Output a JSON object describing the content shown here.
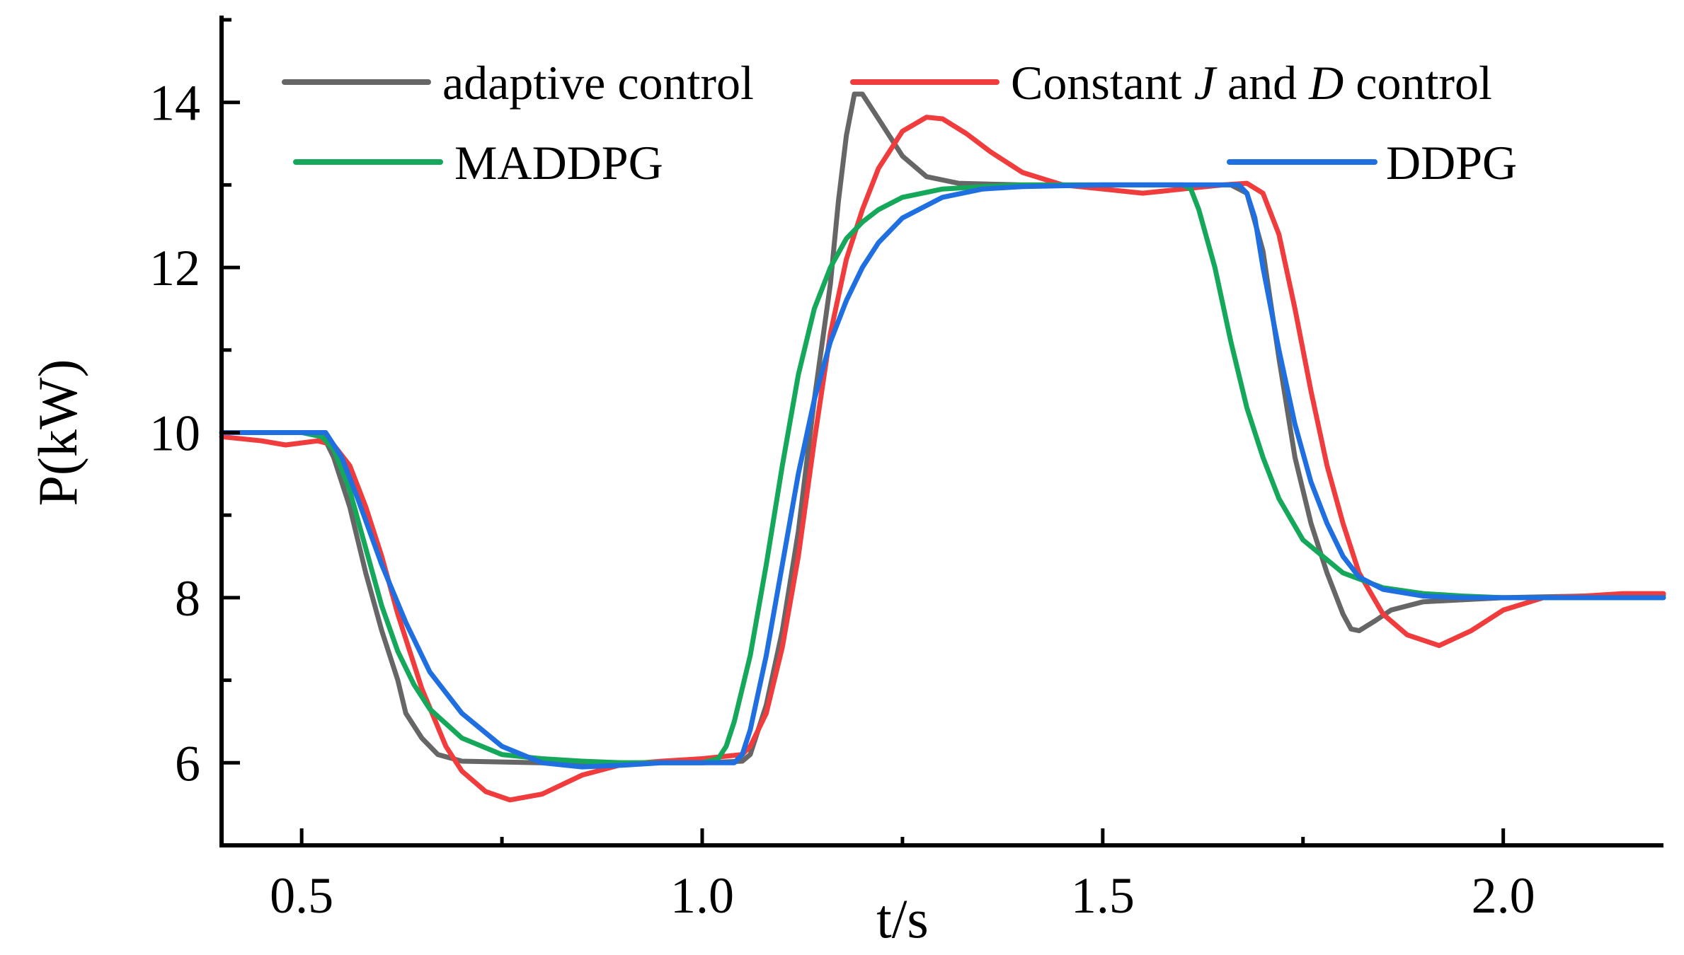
{
  "chart_data": {
    "type": "line",
    "title": "",
    "xlabel": "t/s",
    "ylabel": "P(kW)",
    "xlim": [
      0.4,
      2.2
    ],
    "ylim": [
      5,
      15
    ],
    "xticks": [
      0.5,
      1.0,
      1.5,
      2.0
    ],
    "xtick_labels": [
      "0.5",
      "1.0",
      "1.5",
      "2.0"
    ],
    "x_minor_ticks": [
      0.75,
      1.25,
      1.75
    ],
    "yticks": [
      6,
      8,
      10,
      12,
      14
    ],
    "ytick_labels": [
      "6",
      "8",
      "10",
      "12",
      "14"
    ],
    "y_minor_ticks": [
      5,
      7,
      9,
      11,
      13,
      15
    ],
    "grid": false,
    "legend": {
      "placement": "top",
      "entries": [
        {
          "name": "adaptive control",
          "color": "#666666",
          "row": 1
        },
        {
          "name_parts": [
            "Constant ",
            "J",
            " and ",
            "D",
            " control"
          ],
          "color": "#f03c3c",
          "row": 1
        },
        {
          "name": "MADDPG",
          "color": "#16a85a",
          "row": 2
        },
        {
          "name": "DDPG",
          "color": "#1f6fe0",
          "row": 2
        }
      ]
    },
    "series": [
      {
        "name": "adaptive control",
        "color": "#666666",
        "x": [
          0.4,
          0.45,
          0.5,
          0.525,
          0.54,
          0.56,
          0.58,
          0.6,
          0.62,
          0.63,
          0.65,
          0.67,
          0.7,
          0.8,
          0.9,
          1.0,
          1.05,
          1.06,
          1.08,
          1.1,
          1.12,
          1.14,
          1.16,
          1.17,
          1.18,
          1.19,
          1.2,
          1.22,
          1.25,
          1.28,
          1.32,
          1.4,
          1.5,
          1.6,
          1.66,
          1.68,
          1.7,
          1.72,
          1.74,
          1.76,
          1.78,
          1.8,
          1.81,
          1.82,
          1.84,
          1.86,
          1.9,
          2.0,
          2.1,
          2.2
        ],
        "y": [
          10.0,
          10.0,
          10.0,
          10.0,
          9.7,
          9.1,
          8.3,
          7.6,
          7.0,
          6.6,
          6.3,
          6.1,
          6.02,
          6.0,
          6.0,
          6.0,
          6.02,
          6.1,
          6.7,
          7.6,
          8.8,
          10.4,
          11.8,
          12.8,
          13.6,
          14.1,
          14.1,
          13.8,
          13.35,
          13.1,
          13.02,
          13.0,
          13.0,
          13.0,
          13.0,
          12.9,
          12.2,
          10.9,
          9.7,
          8.9,
          8.3,
          7.8,
          7.62,
          7.6,
          7.72,
          7.85,
          7.95,
          8.0,
          8.02,
          8.03
        ]
      },
      {
        "name": "Constant J and D control",
        "color": "#f03c3c",
        "x": [
          0.4,
          0.45,
          0.48,
          0.52,
          0.54,
          0.56,
          0.58,
          0.6,
          0.62,
          0.65,
          0.68,
          0.7,
          0.73,
          0.76,
          0.8,
          0.85,
          0.9,
          0.95,
          1.0,
          1.05,
          1.06,
          1.08,
          1.1,
          1.12,
          1.14,
          1.16,
          1.18,
          1.2,
          1.22,
          1.25,
          1.28,
          1.3,
          1.33,
          1.36,
          1.4,
          1.45,
          1.5,
          1.55,
          1.6,
          1.65,
          1.68,
          1.7,
          1.72,
          1.74,
          1.76,
          1.78,
          1.8,
          1.82,
          1.85,
          1.88,
          1.92,
          1.96,
          2.0,
          2.05,
          2.1,
          2.15,
          2.2
        ],
        "y": [
          9.95,
          9.9,
          9.85,
          9.9,
          9.85,
          9.6,
          9.1,
          8.5,
          7.8,
          6.9,
          6.2,
          5.9,
          5.65,
          5.55,
          5.62,
          5.85,
          5.98,
          6.02,
          6.05,
          6.1,
          6.2,
          6.6,
          7.4,
          8.5,
          9.9,
          11.2,
          12.1,
          12.7,
          13.2,
          13.65,
          13.82,
          13.8,
          13.62,
          13.4,
          13.15,
          13.0,
          12.95,
          12.9,
          12.95,
          13.0,
          13.02,
          12.9,
          12.4,
          11.5,
          10.5,
          9.6,
          8.9,
          8.3,
          7.8,
          7.55,
          7.42,
          7.6,
          7.85,
          8.0,
          8.02,
          8.05,
          8.05
        ]
      },
      {
        "name": "MADDPG",
        "color": "#16a85a",
        "x": [
          0.4,
          0.45,
          0.5,
          0.525,
          0.54,
          0.56,
          0.58,
          0.6,
          0.62,
          0.64,
          0.66,
          0.7,
          0.75,
          0.8,
          0.85,
          0.9,
          0.95,
          1.0,
          1.02,
          1.03,
          1.04,
          1.06,
          1.08,
          1.1,
          1.12,
          1.14,
          1.16,
          1.18,
          1.2,
          1.22,
          1.25,
          1.3,
          1.35,
          1.4,
          1.5,
          1.55,
          1.6,
          1.61,
          1.62,
          1.64,
          1.66,
          1.68,
          1.7,
          1.72,
          1.75,
          1.8,
          1.85,
          1.9,
          1.95,
          2.0,
          2.1,
          2.2
        ],
        "y": [
          10.0,
          10.0,
          10.0,
          9.95,
          9.8,
          9.3,
          8.6,
          7.9,
          7.35,
          6.95,
          6.65,
          6.3,
          6.1,
          6.05,
          6.02,
          6.0,
          6.0,
          6.0,
          6.05,
          6.2,
          6.5,
          7.3,
          8.4,
          9.6,
          10.7,
          11.5,
          12.0,
          12.35,
          12.55,
          12.7,
          12.85,
          12.95,
          12.98,
          13.0,
          13.0,
          13.0,
          13.0,
          12.95,
          12.7,
          12.0,
          11.1,
          10.3,
          9.7,
          9.2,
          8.7,
          8.3,
          8.12,
          8.05,
          8.02,
          8.0,
          8.0,
          8.0
        ]
      },
      {
        "name": "DDPG",
        "color": "#1f6fe0",
        "x": [
          0.4,
          0.45,
          0.5,
          0.53,
          0.55,
          0.57,
          0.6,
          0.63,
          0.66,
          0.7,
          0.75,
          0.8,
          0.85,
          0.9,
          0.95,
          1.0,
          1.04,
          1.05,
          1.06,
          1.08,
          1.1,
          1.12,
          1.14,
          1.16,
          1.18,
          1.2,
          1.22,
          1.25,
          1.3,
          1.35,
          1.4,
          1.5,
          1.6,
          1.67,
          1.68,
          1.69,
          1.7,
          1.72,
          1.74,
          1.76,
          1.78,
          1.8,
          1.82,
          1.85,
          1.9,
          1.95,
          2.0,
          2.1,
          2.2
        ],
        "y": [
          10.0,
          10.0,
          10.0,
          10.0,
          9.7,
          9.2,
          8.4,
          7.7,
          7.1,
          6.6,
          6.2,
          6.0,
          5.95,
          5.97,
          6.0,
          6.0,
          6.0,
          6.1,
          6.4,
          7.3,
          8.4,
          9.5,
          10.4,
          11.1,
          11.6,
          12.0,
          12.3,
          12.6,
          12.85,
          12.95,
          12.98,
          13.0,
          13.0,
          13.0,
          12.9,
          12.6,
          12.0,
          11.0,
          10.1,
          9.4,
          8.9,
          8.5,
          8.25,
          8.1,
          8.02,
          8.0,
          8.0,
          8.0,
          8.0
        ]
      }
    ]
  }
}
